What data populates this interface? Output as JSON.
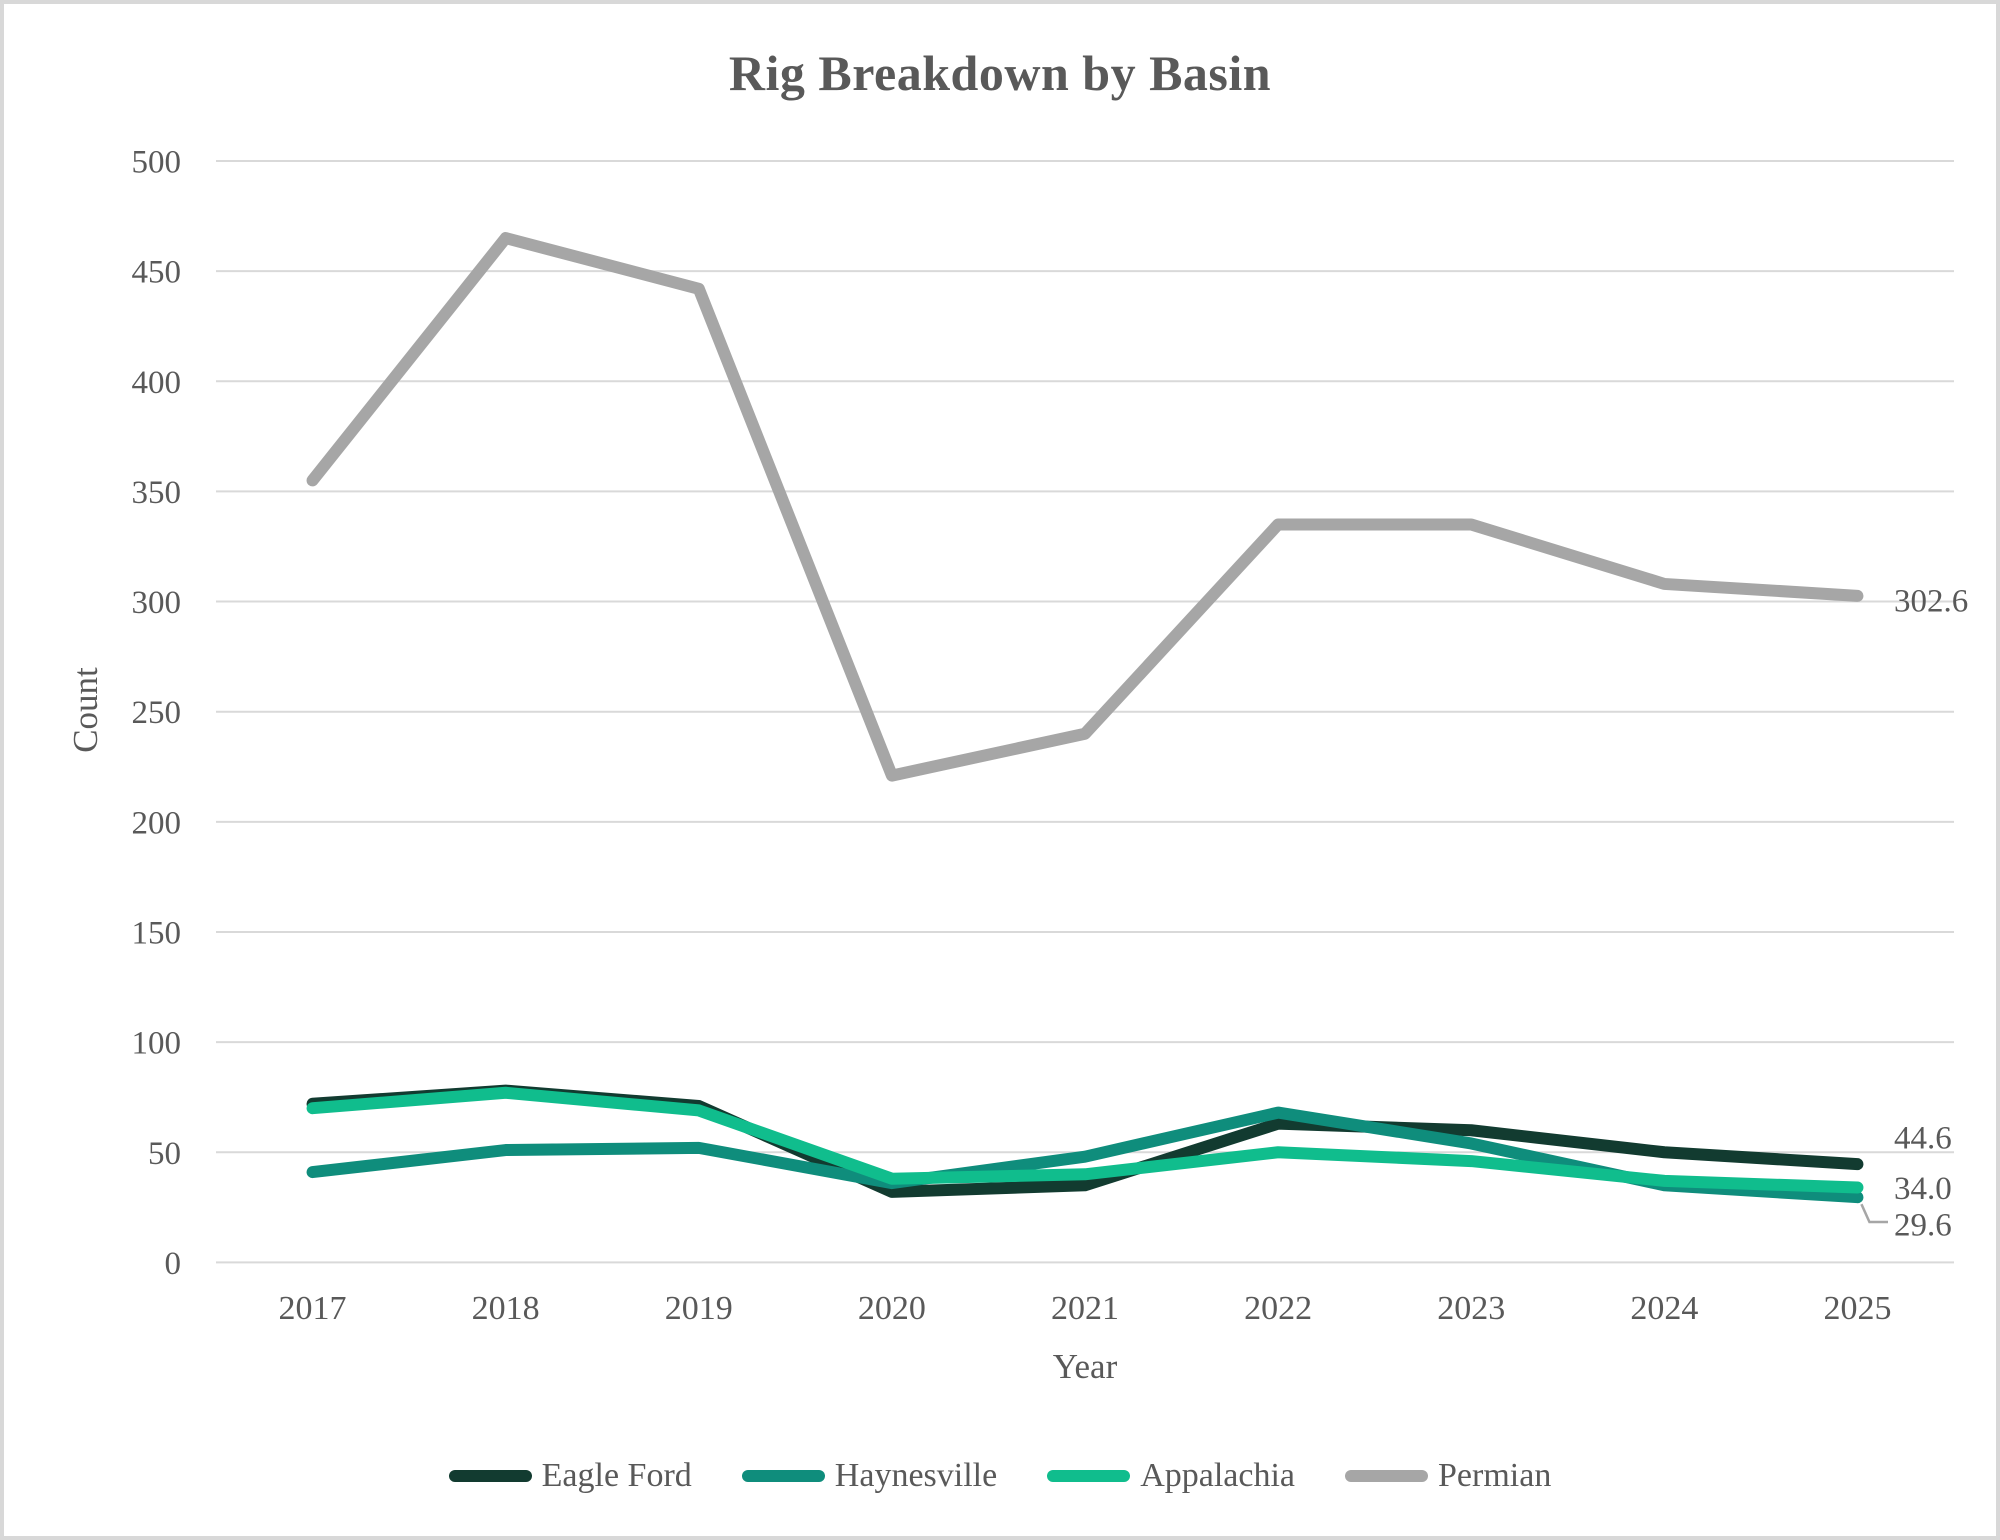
{
  "title": "Rig Breakdown by Basin",
  "colors": {
    "text_gray": "#595959",
    "gridline": "#d9d9d9",
    "leader_line": "#a6a6a6",
    "background": "#ffffff",
    "canvas_border": "#d8d8d8"
  },
  "chart_data": {
    "type": "line",
    "title": "Rig Breakdown by Basin",
    "xlabel": "Year",
    "ylabel": "Count",
    "x": [
      2017,
      2018,
      2019,
      2020,
      2021,
      2022,
      2023,
      2024,
      2025
    ],
    "ylim": [
      0,
      500
    ],
    "ytick_step": 50,
    "yticks": [
      0,
      50,
      100,
      150,
      200,
      250,
      300,
      350,
      400,
      450,
      500
    ],
    "grid": true,
    "legend_position": "bottom",
    "series": [
      {
        "name": "Eagle Ford",
        "color": "#123b30",
        "values": [
          72,
          78,
          71,
          32,
          35,
          63,
          60,
          50,
          44.6
        ],
        "end_label": "44.6"
      },
      {
        "name": "Haynesville",
        "color": "#0f8d7c",
        "values": [
          41,
          51,
          52,
          36,
          48,
          68,
          54,
          35,
          29.6
        ],
        "end_label": "29.6",
        "leader": true
      },
      {
        "name": "Appalachia",
        "color": "#10bd8d",
        "values": [
          70,
          77,
          69,
          38,
          40,
          50,
          46,
          37,
          34
        ],
        "end_label": "34.0"
      },
      {
        "name": "Permian",
        "color": "#a6a6a6",
        "values": [
          355,
          465,
          442,
          221,
          240,
          335,
          335,
          308,
          302.6
        ],
        "end_label": "302.6"
      }
    ]
  }
}
